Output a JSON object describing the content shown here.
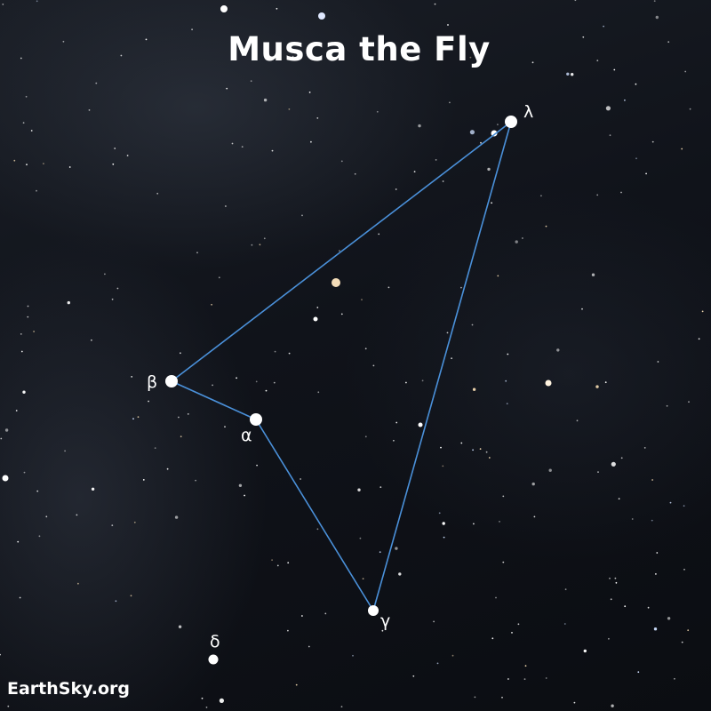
{
  "title": "Musca the Fly",
  "credit": "EarthSky.org",
  "colors": {
    "line": "#4a90d9",
    "star": "#ffffff",
    "background": "#10131a"
  },
  "stars": [
    {
      "id": "lambda",
      "label": "λ"
    },
    {
      "id": "beta",
      "label": "β"
    },
    {
      "id": "alpha",
      "label": "α"
    },
    {
      "id": "gamma",
      "label": "γ"
    },
    {
      "id": "delta",
      "label": "δ"
    }
  ],
  "lines": [
    [
      "lambda",
      "beta"
    ],
    [
      "beta",
      "alpha"
    ],
    [
      "alpha",
      "gamma"
    ],
    [
      "gamma",
      "lambda"
    ]
  ]
}
